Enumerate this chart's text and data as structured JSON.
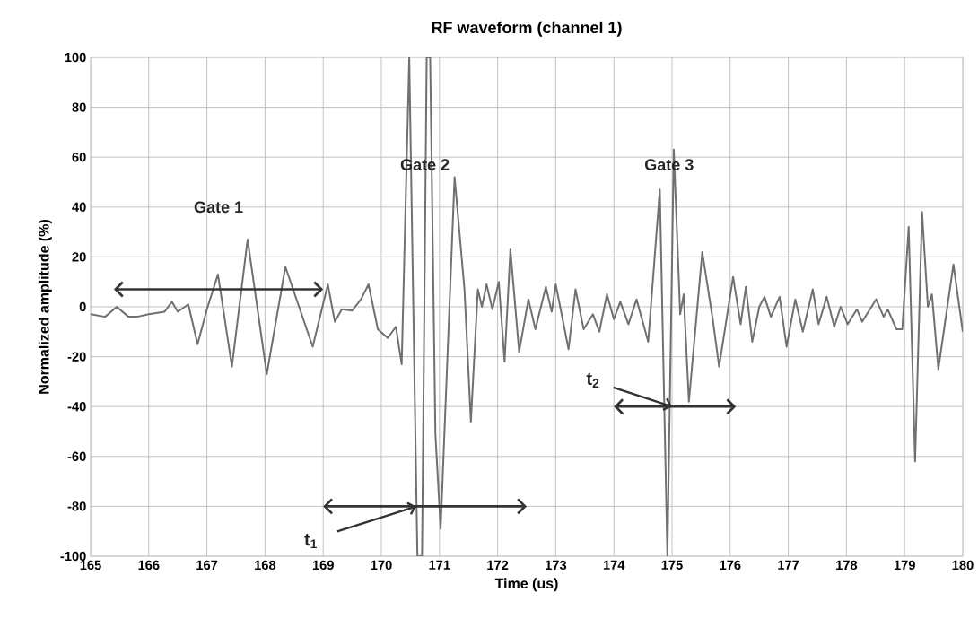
{
  "chart_data": {
    "type": "line",
    "title": "RF waveform (channel 1)",
    "xlabel": "Time (us)",
    "ylabel": "Normalized amplitude (%)",
    "xlim": [
      165,
      180
    ],
    "xticks": [
      165,
      166,
      167,
      168,
      169,
      170,
      171,
      172,
      173,
      174,
      175,
      176,
      177,
      178,
      179,
      180
    ],
    "ylim": [
      -100,
      100
    ],
    "yticks": [
      -100,
      -80,
      -60,
      -40,
      -20,
      0,
      20,
      40,
      60,
      80,
      100
    ],
    "grid": true,
    "marker": "none",
    "line_style": "solid",
    "series": [
      {
        "color": "#707070",
        "x": [
          165,
          165.25,
          165.45,
          165.65,
          165.8,
          166,
          166.27,
          166.4,
          166.5,
          166.68,
          166.84,
          167.0,
          167.19,
          167.43,
          167.7,
          168.03,
          168.35,
          168.82,
          169.08,
          169.2,
          169.32,
          169.5,
          169.65,
          169.78,
          169.94,
          170.11,
          170.25,
          170.35,
          170.48,
          170.62,
          170.7,
          170.78,
          170.84,
          170.93,
          171.02,
          171.26,
          171.43,
          171.54,
          171.66,
          171.73,
          171.81,
          171.91,
          172.02,
          172.12,
          172.22,
          172.37,
          172.53,
          172.65,
          172.83,
          172.93,
          173.0,
          173.22,
          173.34,
          173.48,
          173.64,
          173.75,
          173.88,
          174.0,
          174.11,
          174.25,
          174.39,
          174.59,
          174.79,
          174.92,
          175.03,
          175.14,
          175.2,
          175.29,
          175.52,
          175.7,
          175.81,
          176.05,
          176.18,
          176.27,
          176.38,
          176.5,
          176.59,
          176.7,
          176.85,
          176.97,
          177.12,
          177.25,
          177.42,
          177.52,
          177.66,
          177.79,
          177.9,
          178.02,
          178.18,
          178.27,
          178.51,
          178.64,
          178.71,
          178.86,
          178.96,
          179.07,
          179.18,
          179.3,
          179.4,
          179.47,
          179.58,
          179.84,
          180
        ],
        "values": [
          -3,
          -4,
          0,
          -4,
          -4,
          -3,
          -2,
          2,
          -2,
          1,
          -15,
          -1,
          13,
          -24,
          27,
          -27,
          16,
          -16,
          9,
          -6,
          -1,
          -1.5,
          3,
          9,
          -9,
          -12.5,
          -8,
          -23,
          100,
          -100,
          -100,
          100,
          100,
          -51,
          -89,
          52,
          7,
          -46,
          7,
          0,
          9,
          -1,
          10,
          -22,
          23,
          -18,
          3,
          -9,
          8,
          -2,
          9,
          -17,
          7,
          -9,
          -3,
          -10,
          5,
          -5,
          2,
          -7,
          3,
          -14,
          47,
          -100,
          63,
          -3,
          5,
          -38,
          22,
          -5,
          -24,
          12,
          -7,
          8,
          -14,
          0,
          4,
          -4,
          4,
          -16,
          3,
          -10,
          7,
          -7,
          4,
          -8,
          0,
          -7,
          -1,
          -6,
          3,
          -4,
          -1,
          -9,
          -9,
          32,
          -62,
          38,
          0,
          5,
          -25,
          17,
          -10
        ]
      }
    ],
    "annotations": [
      "Gate 1",
      "Gate 2",
      "Gate 3",
      {
        "text": "t$_{1}$",
        "x": 170.6,
        "y": -80
      },
      {
        "text": "t$_{2}$",
        "x": 175.0,
        "y": -40
      }
    ]
  }
}
